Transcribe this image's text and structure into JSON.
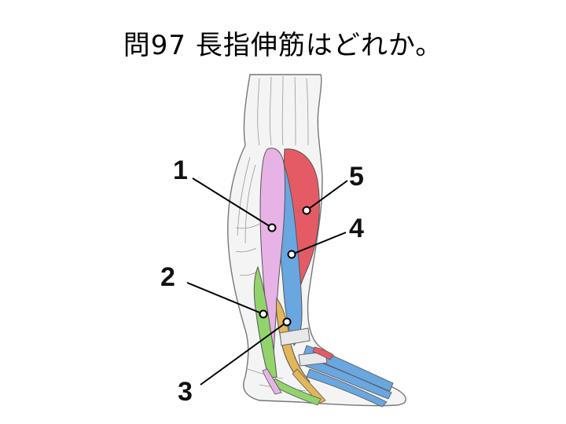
{
  "question": {
    "title": "問97 長指伸筋はどれか。"
  },
  "labels": [
    {
      "id": "1",
      "text": "1"
    },
    {
      "id": "2",
      "text": "2"
    },
    {
      "id": "3",
      "text": "3"
    },
    {
      "id": "4",
      "text": "4"
    },
    {
      "id": "5",
      "text": "5"
    }
  ],
  "colors": {
    "muscle1": "#e7b3e6",
    "muscle2": "#93d36c",
    "muscle3": "#e2b65a",
    "muscle4": "#6aa6e0",
    "muscle5": "#e45b66",
    "outline": "#555555"
  }
}
